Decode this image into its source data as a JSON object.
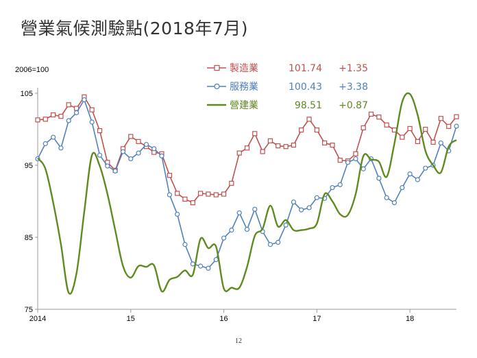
{
  "title": "營業氣候測驗點(2018年7月)",
  "page_number": "12",
  "chart_data": {
    "type": "line",
    "base_note": "2006=100",
    "ylim": [
      75,
      105
    ],
    "yticks": [
      75,
      85,
      95,
      105
    ],
    "xlim": [
      2014.0,
      2018.5
    ],
    "xticks": [
      {
        "value": 2014.0,
        "label": "2014"
      },
      {
        "value": 2015.0,
        "label": "15"
      },
      {
        "value": 2016.0,
        "label": "16"
      },
      {
        "value": 2017.0,
        "label": "17"
      },
      {
        "value": 2018.0,
        "label": "18"
      }
    ],
    "grid": false,
    "legend_position": "top",
    "series": [
      {
        "name": "製造業",
        "value": "101.74",
        "change": "+1.35",
        "color": "#c0504d",
        "marker": "square",
        "smooth": false,
        "points": [
          [
            2014.0,
            101.3
          ],
          [
            2014.083,
            101.4
          ],
          [
            2014.167,
            102.0
          ],
          [
            2014.25,
            101.8
          ],
          [
            2014.333,
            103.4
          ],
          [
            2014.417,
            102.9
          ],
          [
            2014.5,
            104.5
          ],
          [
            2014.583,
            102.7
          ],
          [
            2014.667,
            99.8
          ],
          [
            2014.75,
            95.4
          ],
          [
            2014.833,
            94.3
          ],
          [
            2014.917,
            97.3
          ],
          [
            2015.0,
            99.0
          ],
          [
            2015.083,
            98.3
          ],
          [
            2015.167,
            97.6
          ],
          [
            2015.25,
            96.8
          ],
          [
            2015.333,
            96.6
          ],
          [
            2015.417,
            93.6
          ],
          [
            2015.5,
            91.1
          ],
          [
            2015.583,
            90.3
          ],
          [
            2015.667,
            89.8
          ],
          [
            2015.75,
            91.1
          ],
          [
            2015.833,
            91.0
          ],
          [
            2015.917,
            90.9
          ],
          [
            2016.0,
            91.0
          ],
          [
            2016.083,
            92.5
          ],
          [
            2016.167,
            96.7
          ],
          [
            2016.25,
            97.4
          ],
          [
            2016.333,
            99.4
          ],
          [
            2016.417,
            96.9
          ],
          [
            2016.5,
            98.4
          ],
          [
            2016.583,
            97.7
          ],
          [
            2016.667,
            97.6
          ],
          [
            2016.75,
            97.8
          ],
          [
            2016.833,
            99.9
          ],
          [
            2016.917,
            101.4
          ],
          [
            2017.0,
            99.9
          ],
          [
            2017.083,
            98.1
          ],
          [
            2017.167,
            97.8
          ],
          [
            2017.25,
            95.7
          ],
          [
            2017.333,
            95.6
          ],
          [
            2017.417,
            96.6
          ],
          [
            2017.5,
            100.2
          ],
          [
            2017.583,
            102.1
          ],
          [
            2017.667,
            101.7
          ],
          [
            2017.75,
            100.6
          ],
          [
            2017.833,
            99.9
          ],
          [
            2017.917,
            98.9
          ],
          [
            2018.0,
            100.1
          ],
          [
            2018.083,
            98.3
          ],
          [
            2018.167,
            100.0
          ],
          [
            2018.25,
            98.2
          ],
          [
            2018.333,
            101.5
          ],
          [
            2018.417,
            100.4
          ],
          [
            2018.5,
            101.74
          ]
        ]
      },
      {
        "name": "服務業",
        "value": "100.43",
        "change": "+3.38",
        "color": "#4f81bd",
        "marker": "circle",
        "smooth": false,
        "points": [
          [
            2014.0,
            95.9
          ],
          [
            2014.083,
            98.0
          ],
          [
            2014.167,
            98.9
          ],
          [
            2014.25,
            97.4
          ],
          [
            2014.333,
            101.2
          ],
          [
            2014.417,
            102.3
          ],
          [
            2014.5,
            104.1
          ],
          [
            2014.583,
            101.0
          ],
          [
            2014.667,
            96.4
          ],
          [
            2014.75,
            94.9
          ],
          [
            2014.833,
            94.2
          ],
          [
            2014.917,
            96.9
          ],
          [
            2015.0,
            95.9
          ],
          [
            2015.083,
            96.7
          ],
          [
            2015.167,
            97.9
          ],
          [
            2015.25,
            97.3
          ],
          [
            2015.333,
            96.3
          ],
          [
            2015.417,
            90.9
          ],
          [
            2015.5,
            88.2
          ],
          [
            2015.583,
            84.0
          ],
          [
            2015.667,
            81.3
          ],
          [
            2015.75,
            81.0
          ],
          [
            2015.833,
            80.7
          ],
          [
            2015.917,
            81.9
          ],
          [
            2016.0,
            84.9
          ],
          [
            2016.083,
            86.0
          ],
          [
            2016.167,
            88.4
          ],
          [
            2016.25,
            86.1
          ],
          [
            2016.333,
            88.9
          ],
          [
            2016.417,
            85.8
          ],
          [
            2016.5,
            84.0
          ],
          [
            2016.583,
            84.3
          ],
          [
            2016.667,
            86.7
          ],
          [
            2016.75,
            89.9
          ],
          [
            2016.833,
            88.8
          ],
          [
            2016.917,
            89.1
          ],
          [
            2017.0,
            90.5
          ],
          [
            2017.083,
            90.4
          ],
          [
            2017.167,
            91.9
          ],
          [
            2017.25,
            92.3
          ],
          [
            2017.333,
            95.4
          ],
          [
            2017.417,
            95.9
          ],
          [
            2017.5,
            94.5
          ],
          [
            2017.583,
            95.9
          ],
          [
            2017.667,
            93.2
          ],
          [
            2017.75,
            90.5
          ],
          [
            2017.833,
            89.8
          ],
          [
            2017.917,
            91.9
          ],
          [
            2018.0,
            93.8
          ],
          [
            2018.083,
            93.0
          ],
          [
            2018.167,
            94.6
          ],
          [
            2018.25,
            95.0
          ],
          [
            2018.333,
            98.1
          ],
          [
            2018.417,
            97.0
          ],
          [
            2018.5,
            100.43
          ]
        ]
      },
      {
        "name": "營建業",
        "value": "98.51",
        "change": "+0.87",
        "color": "#5e8a1f",
        "marker": "none",
        "smooth": true,
        "points": [
          [
            2014.0,
            96.0
          ],
          [
            2014.083,
            94.5
          ],
          [
            2014.167,
            89.8
          ],
          [
            2014.25,
            84.0
          ],
          [
            2014.333,
            77.3
          ],
          [
            2014.417,
            80.0
          ],
          [
            2014.5,
            88.5
          ],
          [
            2014.583,
            96.4
          ],
          [
            2014.667,
            94.9
          ],
          [
            2014.75,
            91.0
          ],
          [
            2014.833,
            86.0
          ],
          [
            2014.917,
            81.0
          ],
          [
            2015.0,
            79.4
          ],
          [
            2015.083,
            81.0
          ],
          [
            2015.167,
            80.9
          ],
          [
            2015.25,
            81.1
          ],
          [
            2015.333,
            77.5
          ],
          [
            2015.417,
            79.1
          ],
          [
            2015.5,
            79.5
          ],
          [
            2015.583,
            80.4
          ],
          [
            2015.667,
            79.8
          ],
          [
            2015.75,
            84.8
          ],
          [
            2015.833,
            83.5
          ],
          [
            2015.917,
            83.7
          ],
          [
            2016.0,
            77.9
          ],
          [
            2016.083,
            78.0
          ],
          [
            2016.167,
            78.0
          ],
          [
            2016.25,
            80.9
          ],
          [
            2016.333,
            85.2
          ],
          [
            2016.417,
            86.2
          ],
          [
            2016.5,
            89.4
          ],
          [
            2016.583,
            86.5
          ],
          [
            2016.667,
            87.4
          ],
          [
            2016.75,
            86.0
          ],
          [
            2016.833,
            86.0
          ],
          [
            2016.917,
            86.2
          ],
          [
            2017.0,
            86.9
          ],
          [
            2017.083,
            91.0
          ],
          [
            2017.167,
            90.0
          ],
          [
            2017.25,
            88.2
          ],
          [
            2017.333,
            88.1
          ],
          [
            2017.417,
            91.0
          ],
          [
            2017.5,
            96.3
          ],
          [
            2017.583,
            95.8
          ],
          [
            2017.667,
            95.5
          ],
          [
            2017.75,
            93.4
          ],
          [
            2017.833,
            98.0
          ],
          [
            2017.917,
            103.8
          ],
          [
            2018.0,
            104.9
          ],
          [
            2018.083,
            102.0
          ],
          [
            2018.167,
            97.0
          ],
          [
            2018.25,
            95.0
          ],
          [
            2018.333,
            94.0
          ],
          [
            2018.417,
            97.6
          ],
          [
            2018.5,
            98.51
          ]
        ]
      }
    ]
  }
}
